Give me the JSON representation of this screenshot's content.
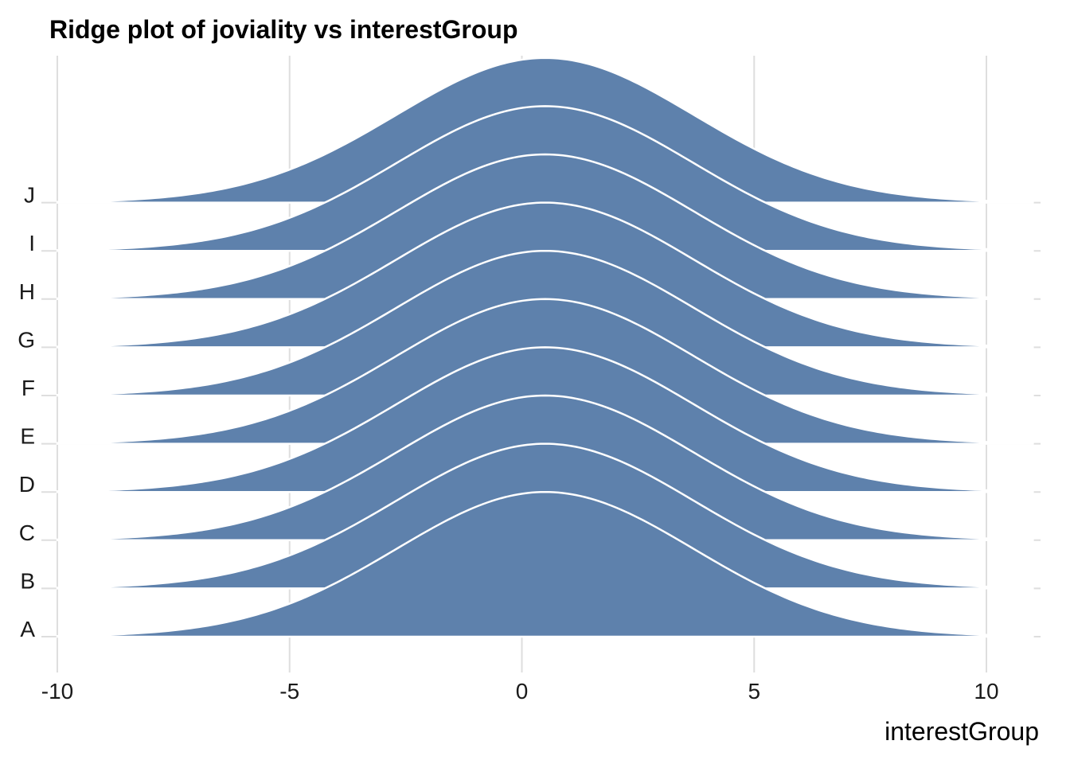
{
  "chart_data": {
    "type": "ridgeline",
    "title": "Ridge plot of joviality vs interestGroup",
    "xlabel": "interestGroup",
    "ylabel": "",
    "xlim": [
      -10.1,
      11.2
    ],
    "xticks": [
      -10,
      -5,
      0,
      5,
      10
    ],
    "xtick_labels": [
      "-10",
      "-5",
      "0",
      "5",
      "10"
    ],
    "categories": [
      "A",
      "B",
      "C",
      "D",
      "E",
      "F",
      "G",
      "H",
      "I",
      "J"
    ],
    "density": {
      "mean": 0.5,
      "sd": 3.2,
      "range": [
        -10,
        11
      ],
      "peak_height_in_rows": 3.0
    },
    "grid": true,
    "legend": "none",
    "fill_color": "#5e81ac",
    "outline_color": "#ffffff",
    "grid_color": "#dedede"
  }
}
